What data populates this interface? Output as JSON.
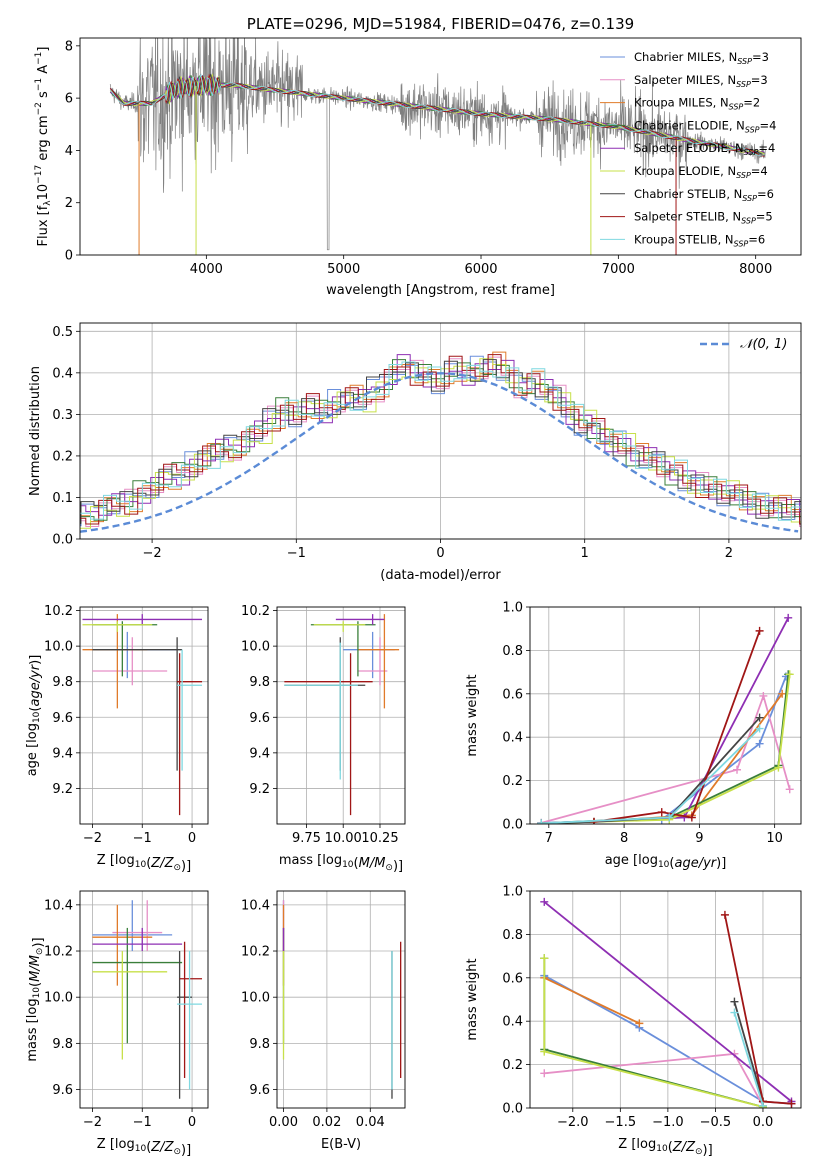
{
  "colors": {
    "chabrier_miles": "#6a8fdb",
    "salpeter_miles": "#e68fc6",
    "kroupa_miles": "#e07b2a",
    "chabrier_elodie": "#3a7f3a",
    "salpeter_elodie": "#8e2fb3",
    "kroupa_elodie": "#c7e04a",
    "chabrier_stelib": "#444444",
    "salpeter_stelib": "#a01616",
    "kroupa_stelib": "#7fd8e0",
    "data": "#808080",
    "normal": "#5b8bd6",
    "grid": "#b0b0b0"
  },
  "legend_entries": [
    {
      "base": "Chabrier MILES, N",
      "sub": "SSP",
      "tail": "=3"
    },
    {
      "base": "Salpeter MILES, N",
      "sub": "SSP",
      "tail": "=3"
    },
    {
      "base": "Kroupa MILES, N",
      "sub": "SSP",
      "tail": "=2"
    },
    {
      "base": "Chabrier ELODIE, N",
      "sub": "SSP",
      "tail": "=4"
    },
    {
      "base": "Salpeter ELODIE, N",
      "sub": "SSP",
      "tail": "=4"
    },
    {
      "base": "Kroupa ELODIE, N",
      "sub": "SSP",
      "tail": "=4"
    },
    {
      "base": "Chabrier STELIB, N",
      "sub": "SSP",
      "tail": "=6"
    },
    {
      "base": "Salpeter STELIB, N",
      "sub": "SSP",
      "tail": "=5"
    },
    {
      "base": "Kroupa STELIB, N",
      "sub": "SSP",
      "tail": "=6"
    }
  ],
  "chart_data": [
    {
      "id": "spectrum",
      "type": "line",
      "title": "PLATE=0296, MJD=51984, FIBERID=0476, z=0.139",
      "xlabel": "wavelength [Angstrom, rest frame]",
      "ylabel": "Flux [fλ10⁻¹⁷ erg cm⁻² s⁻¹ A⁻¹]",
      "xlim": [
        3080,
        8330
      ],
      "ylim": [
        0,
        8.3
      ],
      "xticks": [
        "4000",
        "5000",
        "6000",
        "7000",
        "8000"
      ],
      "yticks": [
        "0",
        "2",
        "4",
        "6",
        "8"
      ],
      "continuum": {
        "x": [
          3300,
          3400,
          3600,
          3800,
          4000,
          4200,
          4500,
          5000,
          5500,
          6000,
          6500,
          7000,
          7500,
          8070
        ],
        "y": [
          6.3,
          5.8,
          5.8,
          6.4,
          6.5,
          6.5,
          6.3,
          6.0,
          5.7,
          5.4,
          5.2,
          4.9,
          4.4,
          3.85
        ]
      },
      "dips": [
        {
          "x": 3510,
          "y": 0.0
        },
        {
          "x": 3925,
          "y": 0.0
        },
        {
          "x": 6800,
          "y": 0.0
        },
        {
          "x": 7420,
          "y": 0.0
        }
      ]
    },
    {
      "id": "residuals",
      "type": "line",
      "xlabel": "(data-model)/error",
      "ylabel": "Normed distribution",
      "xlim": [
        -2.5,
        2.5
      ],
      "ylim": [
        0,
        0.52
      ],
      "xticks": [
        "−2",
        "−1",
        "0",
        "1",
        "2"
      ],
      "yticks": [
        "0.0",
        "0.1",
        "0.2",
        "0.3",
        "0.4",
        "0.5"
      ],
      "normal_label": "𝒩(0, 1)",
      "bin_width": 0.1,
      "template_values": [
        0.02,
        0.025,
        0.03,
        0.04,
        0.05,
        0.05,
        0.06,
        0.075,
        0.085,
        0.09,
        0.11,
        0.13,
        0.15,
        0.16,
        0.18,
        0.2,
        0.21,
        0.22,
        0.24,
        0.26,
        0.29,
        0.31,
        0.3,
        0.32,
        0.31,
        0.33,
        0.34,
        0.33,
        0.36,
        0.39,
        0.42,
        0.4,
        0.39,
        0.38,
        0.41,
        0.4,
        0.41,
        0.42,
        0.4,
        0.37,
        0.38,
        0.36,
        0.34,
        0.3,
        0.28,
        0.26,
        0.24,
        0.23,
        0.2,
        0.19,
        0.18,
        0.16,
        0.14,
        0.13,
        0.12,
        0.11,
        0.1,
        0.09,
        0.08,
        0.075,
        0.065,
        0.06,
        0.055,
        0.05,
        0.045,
        0.04,
        0.035,
        0.03,
        0.03,
        0.028
      ]
    },
    {
      "id": "age_vs_Z",
      "type": "scatter",
      "xlabel": "Z [log10(Z/Z⊙)]",
      "ylabel": "age  [log10(age/yr)]",
      "xlim": [
        -2.25,
        0.32
      ],
      "ylim": [
        9.0,
        10.22
      ],
      "xticks": [
        "−2",
        "−1",
        "0"
      ],
      "yticks": [
        "9.2",
        "9.4",
        "9.6",
        "9.8",
        "10.0",
        "10.2"
      ],
      "points": [
        {
          "c": "chabrier_miles",
          "x": -1.3,
          "y": 9.98,
          "xe": [
            -2.0,
            -0.3
          ],
          "ye": [
            9.82,
            10.08
          ]
        },
        {
          "c": "salpeter_miles",
          "x": -1.2,
          "y": 9.86,
          "xe": [
            -2.0,
            -0.5
          ],
          "ye": [
            9.78,
            10.05
          ]
        },
        {
          "c": "kroupa_miles",
          "x": -1.5,
          "y": 9.98,
          "xe": [
            -2.2,
            -0.9
          ],
          "ye": [
            9.65,
            10.18
          ]
        },
        {
          "c": "chabrier_elodie",
          "x": -1.4,
          "y": 10.12,
          "xe": [
            -2.0,
            -0.7
          ],
          "ye": [
            9.83,
            10.14
          ]
        },
        {
          "c": "salpeter_elodie",
          "x": -1.0,
          "y": 10.15,
          "xe": [
            -2.2,
            0.2
          ],
          "ye": [
            10.12,
            10.18
          ]
        },
        {
          "c": "kroupa_elodie",
          "x": -1.5,
          "y": 10.12,
          "xe": [
            -2.2,
            -0.8
          ],
          "ye": [
            10.08,
            10.14
          ]
        },
        {
          "c": "chabrier_stelib",
          "x": -0.3,
          "y": 9.98,
          "xe": [
            -2.0,
            -0.2
          ],
          "ye": [
            9.3,
            10.05
          ]
        },
        {
          "c": "salpeter_stelib",
          "x": -0.25,
          "y": 9.8,
          "xe": [
            -0.3,
            0.2
          ],
          "ye": [
            9.05,
            9.96
          ]
        },
        {
          "c": "kroupa_stelib",
          "x": -0.2,
          "y": 9.78,
          "xe": [
            -0.3,
            0.2
          ],
          "ye": [
            9.3,
            9.98
          ]
        }
      ]
    },
    {
      "id": "age_vs_mass",
      "type": "scatter",
      "xlabel": "mass [log10(M/M⊙)]",
      "ylabel": "",
      "xlim": [
        9.55,
        10.42
      ],
      "ylim": [
        9.0,
        10.22
      ],
      "xticks": [
        "9.75",
        "10.00",
        "10.25"
      ],
      "yticks": [
        "9.2",
        "9.4",
        "9.6",
        "9.8",
        "10.0",
        "10.2"
      ],
      "points": [
        {
          "c": "chabrier_miles",
          "x": 10.2,
          "y": 9.98,
          "xe": [
            10.0,
            10.35
          ],
          "ye": [
            9.82,
            10.08
          ]
        },
        {
          "c": "salpeter_miles",
          "x": 10.25,
          "y": 9.86,
          "xe": [
            10.1,
            10.3
          ],
          "ye": [
            9.78,
            10.05
          ]
        },
        {
          "c": "kroupa_miles",
          "x": 10.28,
          "y": 9.98,
          "xe": [
            10.1,
            10.38
          ],
          "ye": [
            9.65,
            10.18
          ]
        },
        {
          "c": "chabrier_elodie",
          "x": 10.1,
          "y": 10.12,
          "xe": [
            9.78,
            10.22
          ],
          "ye": [
            9.83,
            10.14
          ]
        },
        {
          "c": "salpeter_elodie",
          "x": 10.2,
          "y": 10.15,
          "xe": [
            9.95,
            10.28
          ],
          "ye": [
            10.12,
            10.18
          ]
        },
        {
          "c": "kroupa_elodie",
          "x": 10.0,
          "y": 10.12,
          "xe": [
            9.8,
            10.15
          ],
          "ye": [
            10.08,
            10.14
          ]
        },
        {
          "c": "chabrier_stelib",
          "x": 9.98,
          "y": 9.78,
          "xe": [
            9.6,
            10.15
          ],
          "ye": [
            9.3,
            10.05
          ]
        },
        {
          "c": "salpeter_stelib",
          "x": 10.05,
          "y": 9.8,
          "xe": [
            9.6,
            10.2
          ],
          "ye": [
            9.05,
            9.96
          ]
        },
        {
          "c": "kroupa_stelib",
          "x": 9.98,
          "y": 9.78,
          "xe": [
            9.6,
            10.1
          ],
          "ye": [
            9.25,
            10.02
          ]
        }
      ]
    },
    {
      "id": "weight_vs_age",
      "type": "line",
      "xlabel": "age  [log10(age/yr)]",
      "ylabel": "mass weight",
      "xlim": [
        6.75,
        10.35
      ],
      "ylim": [
        0,
        1.0
      ],
      "xticks": [
        "7",
        "8",
        "9",
        "10"
      ],
      "yticks": [
        "0.0",
        "0.2",
        "0.4",
        "0.6",
        "0.8",
        "1.0"
      ],
      "series": [
        {
          "c": "chabrier_miles",
          "x": [
            6.9,
            8.5,
            9.8,
            10.15
          ],
          "y": [
            0.005,
            0.02,
            0.37,
            0.68
          ]
        },
        {
          "c": "salpeter_miles",
          "x": [
            6.9,
            9.5,
            9.85,
            10.2
          ],
          "y": [
            0.005,
            0.25,
            0.59,
            0.16
          ]
        },
        {
          "c": "kroupa_miles",
          "x": [
            7.6,
            8.9,
            10.1
          ],
          "y": [
            0.01,
            0.04,
            0.6
          ]
        },
        {
          "c": "chabrier_elodie",
          "x": [
            6.9,
            8.6,
            10.05,
            10.18
          ],
          "y": [
            0.003,
            0.03,
            0.27,
            0.69
          ]
        },
        {
          "c": "salpeter_elodie",
          "x": [
            6.9,
            8.8,
            10.18
          ],
          "y": [
            0.003,
            0.03,
            0.95
          ]
        },
        {
          "c": "kroupa_elodie",
          "x": [
            6.9,
            8.6,
            10.05,
            10.2
          ],
          "y": [
            0.003,
            0.02,
            0.26,
            0.69
          ]
        },
        {
          "c": "chabrier_stelib",
          "x": [
            6.9,
            7.6,
            8.6,
            9.8
          ],
          "y": [
            0.003,
            0.01,
            0.03,
            0.49
          ]
        },
        {
          "c": "salpeter_stelib",
          "x": [
            7.6,
            8.5,
            8.9,
            9.8
          ],
          "y": [
            0.01,
            0.055,
            0.03,
            0.89
          ]
        },
        {
          "c": "kroupa_stelib",
          "x": [
            6.9,
            8.6,
            9.8
          ],
          "y": [
            0.003,
            0.03,
            0.44
          ]
        }
      ]
    },
    {
      "id": "mass_vs_Z",
      "type": "scatter",
      "xlabel": "Z [log10(Z/Z⊙)]",
      "ylabel": "mass [log10(M/M⊙)]",
      "xlim": [
        -2.25,
        0.32
      ],
      "ylim": [
        9.52,
        10.46
      ],
      "xticks": [
        "−2",
        "−1",
        "0"
      ],
      "yticks": [
        "9.6",
        "9.8",
        "10.0",
        "10.2",
        "10.4"
      ],
      "points": [
        {
          "c": "chabrier_miles",
          "x": -1.2,
          "y": 10.27,
          "xe": [
            -2.0,
            -0.4
          ],
          "ye": [
            10.2,
            10.42
          ]
        },
        {
          "c": "salpeter_miles",
          "x": -0.9,
          "y": 10.28,
          "xe": [
            -1.6,
            -0.6
          ],
          "ye": [
            10.2,
            10.42
          ]
        },
        {
          "c": "kroupa_miles",
          "x": -1.5,
          "y": 10.26,
          "xe": [
            -2.0,
            -0.8
          ],
          "ye": [
            10.05,
            10.4
          ]
        },
        {
          "c": "chabrier_elodie",
          "x": -1.3,
          "y": 10.15,
          "xe": [
            -2.0,
            -0.2
          ],
          "ye": [
            9.8,
            10.3
          ]
        },
        {
          "c": "salpeter_elodie",
          "x": -1.0,
          "y": 10.23,
          "xe": [
            -2.0,
            -0.2
          ],
          "ye": [
            10.2,
            10.3
          ]
        },
        {
          "c": "kroupa_elodie",
          "x": -1.4,
          "y": 10.11,
          "xe": [
            -2.0,
            -0.5
          ],
          "ye": [
            9.73,
            10.2
          ]
        },
        {
          "c": "chabrier_stelib",
          "x": -0.25,
          "y": 10.0,
          "xe": [
            -0.3,
            0.0
          ],
          "ye": [
            9.56,
            10.2
          ]
        },
        {
          "c": "salpeter_stelib",
          "x": -0.15,
          "y": 10.08,
          "xe": [
            -0.25,
            0.2
          ],
          "ye": [
            9.65,
            10.24
          ]
        },
        {
          "c": "kroupa_stelib",
          "x": -0.05,
          "y": 9.97,
          "xe": [
            -0.3,
            0.2
          ],
          "ye": [
            9.6,
            10.2
          ]
        }
      ]
    },
    {
      "id": "mass_vs_ebv",
      "type": "scatter",
      "xlabel": "E(B-V)",
      "ylabel": "",
      "xlim": [
        -0.003,
        0.056
      ],
      "ylim": [
        9.52,
        10.46
      ],
      "xticks": [
        "0.00",
        "0.02",
        "0.04"
      ],
      "yticks": [
        "9.6",
        "9.8",
        "10.0",
        "10.2",
        "10.4"
      ],
      "points": [
        {
          "c": "chabrier_miles",
          "x": 0.0,
          "y": 10.27,
          "xe": [
            0.0,
            0.0
          ],
          "ye": [
            10.2,
            10.42
          ]
        },
        {
          "c": "salpeter_miles",
          "x": 0.0,
          "y": 10.28,
          "xe": [
            0.0,
            0.0
          ],
          "ye": [
            10.2,
            10.42
          ]
        },
        {
          "c": "kroupa_miles",
          "x": 0.0,
          "y": 10.26,
          "xe": [
            0.0,
            0.0
          ],
          "ye": [
            10.05,
            10.4
          ]
        },
        {
          "c": "chabrier_elodie",
          "x": 0.0,
          "y": 10.15,
          "xe": [
            0.0,
            0.0
          ],
          "ye": [
            9.8,
            10.3
          ]
        },
        {
          "c": "salpeter_elodie",
          "x": 0.0,
          "y": 10.23,
          "xe": [
            0.0,
            0.0
          ],
          "ye": [
            10.2,
            10.3
          ]
        },
        {
          "c": "kroupa_elodie",
          "x": 0.0,
          "y": 10.11,
          "xe": [
            0.0,
            0.0
          ],
          "ye": [
            9.73,
            10.2
          ]
        },
        {
          "c": "chabrier_stelib",
          "x": 0.05,
          "y": 10.0,
          "xe": [
            0.05,
            0.05
          ],
          "ye": [
            9.56,
            10.2
          ]
        },
        {
          "c": "salpeter_stelib",
          "x": 0.054,
          "y": 10.08,
          "xe": [
            0.054,
            0.054
          ],
          "ye": [
            9.65,
            10.24
          ]
        },
        {
          "c": "kroupa_stelib",
          "x": 0.05,
          "y": 9.97,
          "xe": [
            0.05,
            0.05
          ],
          "ye": [
            9.6,
            10.2
          ]
        }
      ]
    },
    {
      "id": "weight_vs_Z",
      "type": "line",
      "xlabel": "Z [log10(Z/Z⊙)]",
      "ylabel": "mass weight",
      "xlim": [
        -2.45,
        0.4
      ],
      "ylim": [
        0,
        1.0
      ],
      "xticks": [
        "−2.0",
        "−1.5",
        "−1.0",
        "−0.5",
        "0.0"
      ],
      "yticks": [
        "0.0",
        "0.2",
        "0.4",
        "0.6",
        "0.8",
        "1.0"
      ],
      "series": [
        {
          "c": "chabrier_miles",
          "x": [
            -2.3,
            -1.3,
            0.0,
            0.3
          ],
          "y": [
            0.61,
            0.37,
            0.03,
            0.02
          ]
        },
        {
          "c": "salpeter_miles",
          "x": [
            -2.3,
            -0.3,
            0.0
          ],
          "y": [
            0.16,
            0.25,
            0.01
          ]
        },
        {
          "c": "kroupa_miles",
          "x": [
            -2.3,
            -1.3
          ],
          "y": [
            0.6,
            0.39
          ]
        },
        {
          "c": "chabrier_elodie",
          "x": [
            -2.3,
            -2.3,
            0.0,
            0.0
          ],
          "y": [
            0.69,
            0.27,
            0.005,
            0.03
          ]
        },
        {
          "c": "salpeter_elodie",
          "x": [
            -2.3,
            0.3
          ],
          "y": [
            0.95,
            0.03
          ]
        },
        {
          "c": "kroupa_elodie",
          "x": [
            -2.3,
            -2.3,
            0.0,
            0.0
          ],
          "y": [
            0.69,
            0.26,
            0.005,
            0.03
          ]
        },
        {
          "c": "chabrier_stelib",
          "x": [
            -0.3,
            0.0
          ],
          "y": [
            0.49,
            0.03
          ]
        },
        {
          "c": "salpeter_stelib",
          "x": [
            -0.4,
            0.0,
            0.3
          ],
          "y": [
            0.89,
            0.03,
            0.02
          ]
        },
        {
          "c": "kroupa_stelib",
          "x": [
            -0.3,
            0.0
          ],
          "y": [
            0.44,
            0.01
          ]
        }
      ]
    }
  ]
}
